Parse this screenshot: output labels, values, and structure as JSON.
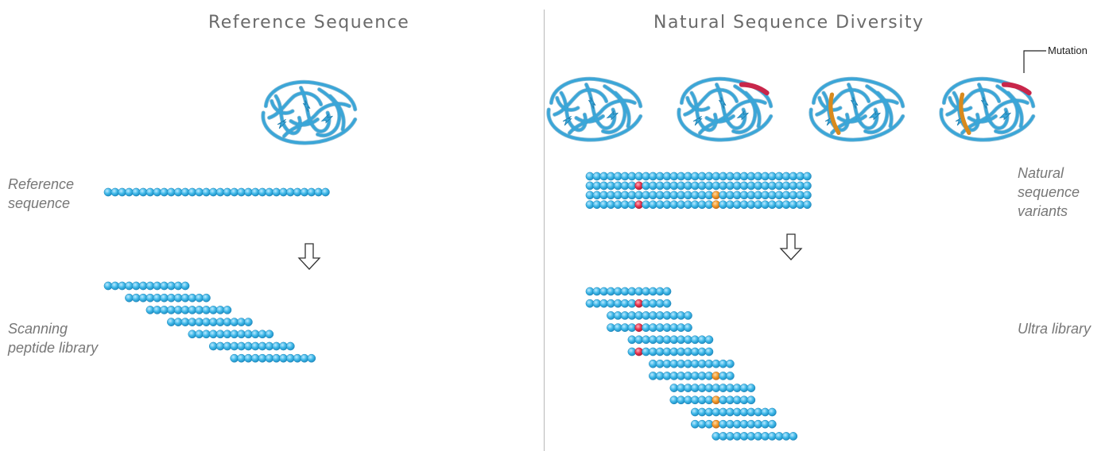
{
  "left_panel": {
    "title": "Reference Sequence",
    "reference_label_lines": [
      "Reference",
      "sequence"
    ],
    "library_label_lines": [
      "Scanning",
      "peptide library"
    ],
    "reference_length": 32,
    "library_rows": [
      {
        "offset": 0,
        "length": 12
      },
      {
        "offset": 3,
        "length": 12
      },
      {
        "offset": 6,
        "length": 12
      },
      {
        "offset": 9,
        "length": 12
      },
      {
        "offset": 12,
        "length": 12
      },
      {
        "offset": 15,
        "length": 12
      },
      {
        "offset": 18,
        "length": 12
      }
    ]
  },
  "right_panel": {
    "title": "Natural Sequence Diversity",
    "mutation_label": "Mutation",
    "variants_label_lines": [
      "Natural",
      "sequence",
      "variants"
    ],
    "library_label": "Ultra library",
    "variant_length": 32,
    "variant_rows": [
      {
        "mutations": []
      },
      {
        "mutations": [
          {
            "index": 7,
            "type": "red"
          }
        ]
      },
      {
        "mutations": [
          {
            "index": 18,
            "type": "orange"
          }
        ]
      },
      {
        "mutations": [
          {
            "index": 7,
            "type": "red"
          },
          {
            "index": 18,
            "type": "orange"
          }
        ]
      }
    ],
    "library_rows": [
      {
        "offset": 0,
        "length": 12,
        "mutations": []
      },
      {
        "offset": 0,
        "length": 12,
        "mutations": [
          {
            "index": 7,
            "type": "red"
          }
        ]
      },
      {
        "offset": 3,
        "length": 12,
        "mutations": []
      },
      {
        "offset": 3,
        "length": 12,
        "mutations": [
          {
            "index": 7,
            "type": "red"
          }
        ]
      },
      {
        "offset": 6,
        "length": 12,
        "mutations": []
      },
      {
        "offset": 6,
        "length": 12,
        "mutations": [
          {
            "index": 7,
            "type": "red"
          }
        ]
      },
      {
        "offset": 9,
        "length": 12,
        "mutations": []
      },
      {
        "offset": 9,
        "length": 12,
        "mutations": [
          {
            "index": 18,
            "type": "orange"
          }
        ]
      },
      {
        "offset": 12,
        "length": 12,
        "mutations": []
      },
      {
        "offset": 12,
        "length": 12,
        "mutations": [
          {
            "index": 18,
            "type": "orange"
          }
        ]
      },
      {
        "offset": 15,
        "length": 12,
        "mutations": []
      },
      {
        "offset": 15,
        "length": 12,
        "mutations": [
          {
            "index": 18,
            "type": "orange"
          }
        ]
      },
      {
        "offset": 18,
        "length": 12,
        "mutations": []
      }
    ],
    "structures": [
      {
        "highlights": []
      },
      {
        "highlights": [
          "red"
        ]
      },
      {
        "highlights": [
          "orange"
        ]
      },
      {
        "highlights": [
          "red",
          "orange"
        ]
      }
    ]
  },
  "colors": {
    "residue": "#3fb8e8",
    "residue_dark": "#1f8fc4",
    "mutation_red": "#e8354f",
    "mutation_orange": "#f39a2a",
    "ribbon": "#3aa6d8",
    "ribbon_dark": "#1e7fb0",
    "ribbon_red": "#c8264a",
    "ribbon_orange": "#d88a1e",
    "title_text": "#6a6a6a",
    "label_text": "#777777"
  }
}
